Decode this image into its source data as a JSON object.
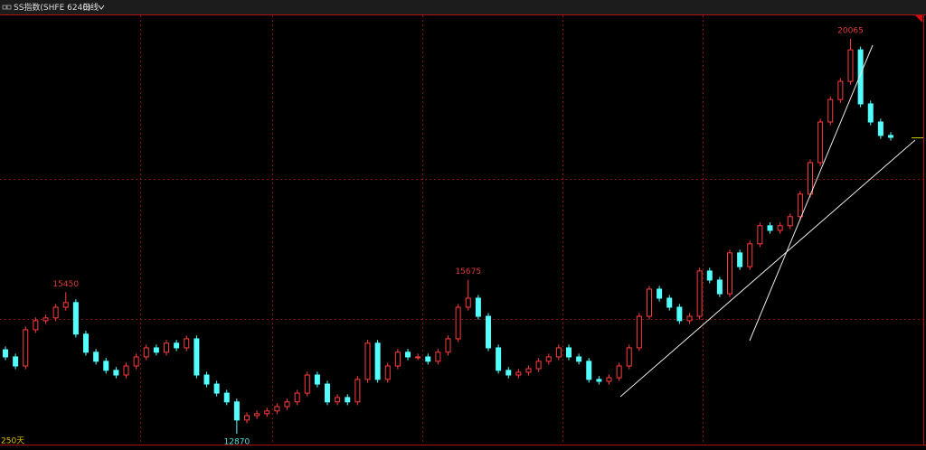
{
  "chart_data": {
    "type": "candlestick",
    "title": "SS指数(SHFE 6240)",
    "period": "日线",
    "range_label": "250天",
    "up_color": "#ff3c3c",
    "down_color": "#54ffff",
    "open": [
      14400,
      14270,
      14105,
      14765,
      14930,
      14980,
      15175,
      15260,
      14685,
      14355,
      14190,
      14025,
      13940,
      14105,
      14270,
      14435,
      14355,
      14520,
      14435,
      14600,
      13940,
      13775,
      13610,
      13450,
      13120,
      13200,
      13235,
      13285,
      13365,
      13450,
      13610,
      13940,
      13775,
      13450,
      13530,
      13450,
      13860,
      14520,
      13860,
      14105,
      14355,
      14270,
      14270,
      14190,
      14355,
      14600,
      15175,
      15340,
      15010,
      14435,
      14025,
      13940,
      13990,
      14055,
      14190,
      14270,
      14435,
      14270,
      14190,
      13860,
      13825,
      13890,
      14105,
      14435,
      15010,
      15505,
      15340,
      15175,
      14930,
      15010,
      15835,
      15670,
      15420,
      16165,
      15915,
      16330,
      16660,
      16575,
      16660,
      16825,
      17235,
      17810,
      18550,
      18960,
      19290,
      19865,
      18880,
      18550,
      18305
    ],
    "high": [
      14460,
      14330,
      14825,
      14990,
      15040,
      15235,
      15450,
      15320,
      14745,
      14415,
      14250,
      14085,
      14165,
      14330,
      14495,
      14495,
      14580,
      14580,
      14660,
      14660,
      14000,
      13835,
      13670,
      13510,
      13260,
      13295,
      13345,
      13425,
      13510,
      13670,
      14000,
      14000,
      13835,
      13590,
      13590,
      13920,
      14580,
      14580,
      14165,
      14415,
      14415,
      14330,
      14330,
      14415,
      14660,
      15235,
      15675,
      15400,
      15070,
      14495,
      14085,
      14050,
      14115,
      14250,
      14330,
      14495,
      14495,
      14330,
      14250,
      13920,
      13950,
      14165,
      14495,
      15070,
      15565,
      15565,
      15400,
      15235,
      15070,
      15895,
      15895,
      15730,
      16225,
      16225,
      16390,
      16720,
      16720,
      16720,
      16885,
      17295,
      17870,
      18610,
      19020,
      19350,
      20065,
      19925,
      18940,
      18610,
      18365
    ],
    "low": [
      14210,
      14045,
      14045,
      14705,
      14870,
      14920,
      15115,
      14625,
      14295,
      14130,
      13965,
      13880,
      13880,
      14045,
      14210,
      14295,
      14295,
      14375,
      14375,
      13880,
      13715,
      13550,
      13390,
      12870,
      13060,
      13140,
      13175,
      13225,
      13305,
      13390,
      13550,
      13715,
      13390,
      13390,
      13390,
      13390,
      13800,
      13800,
      13800,
      14045,
      14210,
      14210,
      14130,
      14130,
      14295,
      14540,
      15115,
      14950,
      14375,
      13965,
      13880,
      13880,
      13930,
      13995,
      14130,
      14210,
      14210,
      14130,
      13800,
      13765,
      13765,
      13830,
      14045,
      14375,
      14950,
      15280,
      15115,
      14870,
      14870,
      14950,
      15610,
      15360,
      15360,
      15855,
      15855,
      16270,
      16515,
      16515,
      16600,
      16765,
      17175,
      17750,
      18490,
      18900,
      19230,
      18820,
      18490,
      18245,
      18210
    ],
    "close": [
      14270,
      14105,
      14765,
      14930,
      14980,
      15175,
      15260,
      14685,
      14355,
      14190,
      14025,
      13940,
      14105,
      14270,
      14435,
      14355,
      14520,
      14435,
      14600,
      13940,
      13775,
      13610,
      13450,
      13120,
      13200,
      13235,
      13285,
      13365,
      13450,
      13610,
      13940,
      13775,
      13450,
      13530,
      13450,
      13860,
      14520,
      13860,
      14105,
      14355,
      14270,
      14270,
      14190,
      14355,
      14600,
      15175,
      15340,
      15010,
      14435,
      14025,
      13940,
      13990,
      14055,
      14190,
      14270,
      14435,
      14270,
      14190,
      13860,
      13825,
      13890,
      14105,
      14435,
      15010,
      15505,
      15340,
      15175,
      14930,
      15010,
      15835,
      15670,
      15420,
      16165,
      15915,
      16330,
      16660,
      16575,
      16660,
      16825,
      17235,
      17810,
      18550,
      18960,
      19290,
      19865,
      18880,
      18550,
      18305,
      18270
    ]
  }
}
